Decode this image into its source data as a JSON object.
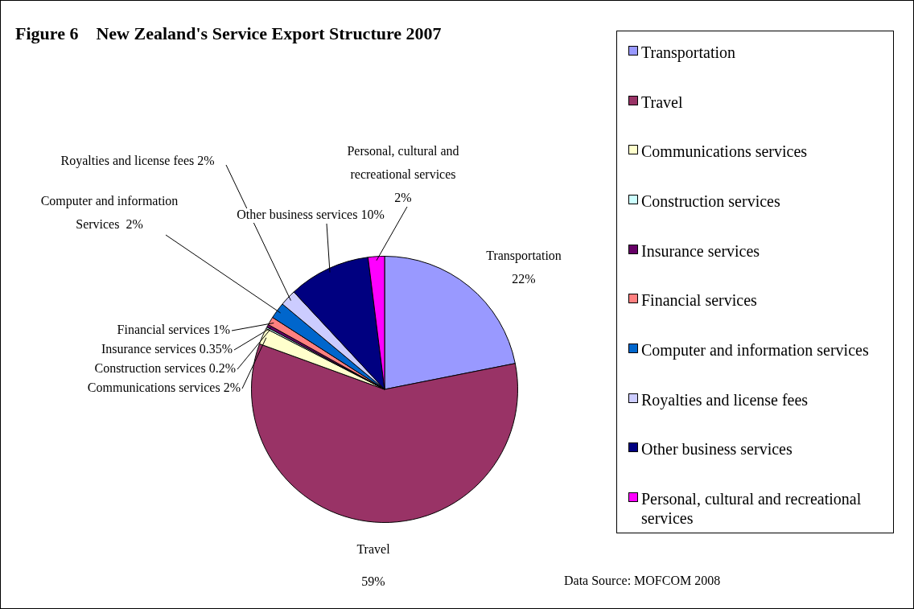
{
  "chart_data": {
    "type": "pie",
    "title": "Figure 6    New Zealand's Service Export Structure 2007",
    "categories": [
      "Transportation",
      "Travel",
      "Communications services",
      "Construction services",
      "Insurance services",
      "Financial services",
      "Computer and information services",
      "Royalties and license fees",
      "Other business services",
      "Personal, cultural and recreational services"
    ],
    "values": [
      22,
      59,
      2,
      0.2,
      0.35,
      1,
      2,
      2,
      10,
      2
    ],
    "colors": [
      "#9999ff",
      "#993366",
      "#ffffcc",
      "#ccffff",
      "#660066",
      "#ff8080",
      "#0066cc",
      "#ccccff",
      "#000080",
      "#ff00ff"
    ],
    "value_labels": [
      "Transportation\n22%",
      "Travel\n\n59%",
      "Communications services 2%",
      "Construction services 0.2%",
      "Insurance services 0.35%",
      "Financial services 1%",
      "Computer and information\nServices  2%",
      "Royalties and license fees 2%",
      "Other business services 10%",
      "Personal, cultural and\nrecreational services\n2%"
    ],
    "legend": "right",
    "annotations": [
      "Data Source: MOFCOM 2008"
    ]
  }
}
